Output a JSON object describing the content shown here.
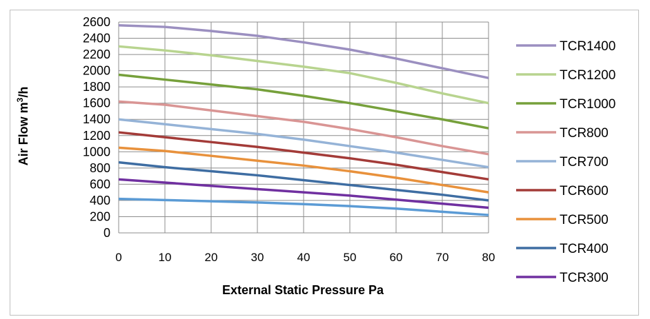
{
  "chart_data": {
    "type": "line",
    "title": "",
    "xlabel": "External Static Pressure  Pa",
    "ylabel": "Air Flow m³/h",
    "ylabel_main": "Air Flow m",
    "ylabel_sup": "3",
    "ylabel_tail": "/h",
    "xlim": [
      0,
      80
    ],
    "ylim": [
      0,
      2600
    ],
    "x_ticks": [
      "0",
      "10",
      "20",
      "30",
      "40",
      "50",
      "60",
      "70",
      "80"
    ],
    "y_ticks": [
      "0",
      "200",
      "400",
      "600",
      "800",
      "1000",
      "1200",
      "1400",
      "1600",
      "1800",
      "2000",
      "2200",
      "2400",
      "2600"
    ],
    "grid": "horizontal and vertical",
    "legend_position": "right",
    "x": [
      0,
      10,
      20,
      30,
      40,
      50,
      60,
      70,
      80
    ],
    "series": [
      {
        "name": "TCR1400",
        "color": "#9b8fc0",
        "values": [
          2560,
          2540,
          2490,
          2430,
          2350,
          2260,
          2150,
          2030,
          1910
        ]
      },
      {
        "name": "TCR1200",
        "color": "#b8d48f",
        "values": [
          2300,
          2250,
          2190,
          2120,
          2050,
          1970,
          1850,
          1720,
          1600
        ]
      },
      {
        "name": "TCR1000",
        "color": "#76a03b",
        "values": [
          1950,
          1890,
          1830,
          1770,
          1690,
          1600,
          1500,
          1400,
          1290
        ]
      },
      {
        "name": "TCR800",
        "color": "#d99594",
        "values": [
          1620,
          1580,
          1510,
          1440,
          1370,
          1280,
          1180,
          1070,
          970
        ]
      },
      {
        "name": "TCR700",
        "color": "#95b3d7",
        "values": [
          1400,
          1340,
          1280,
          1220,
          1150,
          1070,
          990,
          900,
          810
        ]
      },
      {
        "name": "TCR600",
        "color": "#a33b38",
        "values": [
          1240,
          1180,
          1120,
          1060,
          990,
          920,
          840,
          750,
          660
        ]
      },
      {
        "name": "TCR500",
        "color": "#e8913c",
        "values": [
          1050,
          1010,
          950,
          890,
          830,
          760,
          680,
          590,
          500
        ]
      },
      {
        "name": "TCR400",
        "color": "#3e6da2",
        "values": [
          870,
          810,
          760,
          710,
          650,
          590,
          530,
          470,
          400
        ]
      },
      {
        "name": "TCR300",
        "color": "#7030a0",
        "values": [
          660,
          620,
          580,
          540,
          500,
          460,
          410,
          360,
          310
        ]
      },
      {
        "name": "",
        "color": "#5b9bd5",
        "values": [
          420,
          405,
          390,
          375,
          355,
          330,
          300,
          260,
          220
        ]
      }
    ]
  }
}
